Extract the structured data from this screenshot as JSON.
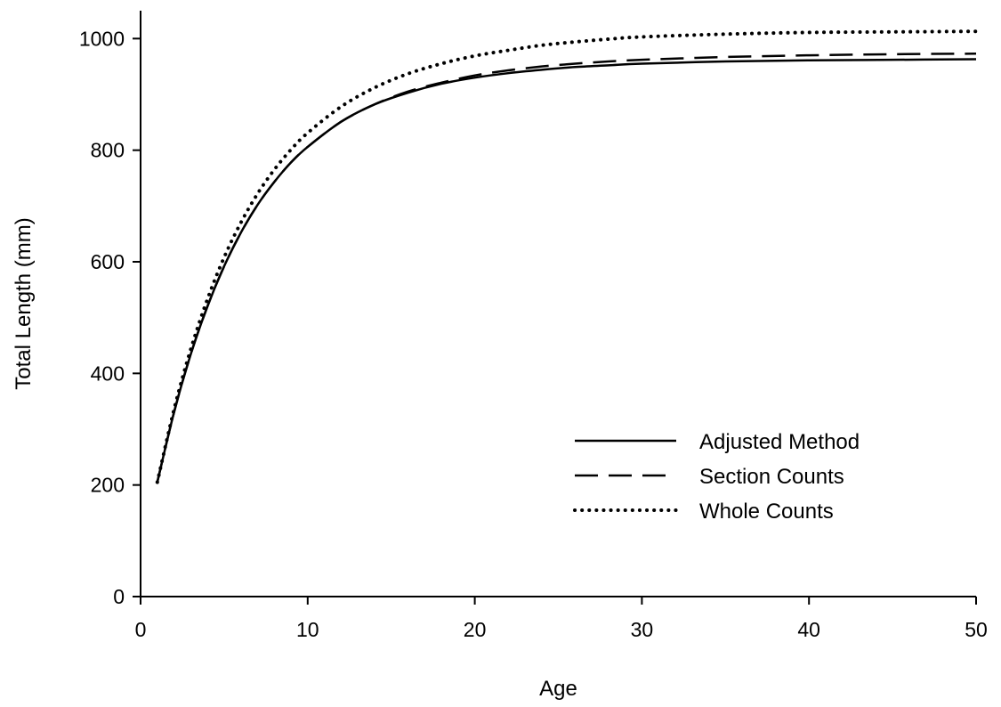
{
  "chart_data": {
    "type": "line",
    "title": "",
    "xlabel": "Age",
    "ylabel": "Total Length (mm)",
    "xlim": [
      0,
      50
    ],
    "ylim": [
      0,
      1050
    ],
    "xticks": [
      0,
      10,
      20,
      30,
      40,
      50
    ],
    "yticks": [
      0,
      200,
      400,
      600,
      800,
      1000
    ],
    "grid": false,
    "legend_position": "lower-right",
    "series": [
      {
        "name": "Adjusted Method",
        "style": "solid",
        "color": "#000000",
        "x": [
          1,
          2,
          3,
          4,
          5,
          6,
          7,
          8,
          9,
          10,
          12,
          14,
          16,
          18,
          20,
          22,
          24,
          26,
          28,
          30,
          35,
          40,
          45,
          50
        ],
        "values": [
          205,
          330,
          434,
          520,
          592,
          652,
          702,
          743,
          778,
          806,
          851,
          882,
          903,
          919,
          930,
          938,
          944,
          949,
          952,
          955,
          959,
          961,
          962,
          963
        ]
      },
      {
        "name": "Section Counts",
        "style": "dashed",
        "color": "#000000",
        "x": [
          1,
          2,
          3,
          4,
          5,
          6,
          7,
          8,
          9,
          10,
          12,
          14,
          16,
          18,
          20,
          22,
          24,
          26,
          28,
          30,
          35,
          40,
          45,
          50
        ],
        "values": [
          205,
          330,
          434,
          520,
          592,
          652,
          702,
          743,
          778,
          806,
          851,
          882,
          905,
          921,
          934,
          943,
          950,
          955,
          959,
          962,
          967,
          970,
          972,
          973
        ]
      },
      {
        "name": "Whole Counts",
        "style": "dotted",
        "color": "#000000",
        "x": [
          1,
          2,
          3,
          4,
          5,
          6,
          7,
          8,
          9,
          10,
          12,
          14,
          16,
          18,
          20,
          22,
          24,
          26,
          28,
          30,
          35,
          40,
          45,
          50
        ],
        "values": [
          205,
          335,
          443,
          533,
          608,
          670,
          722,
          765,
          801,
          831,
          878,
          912,
          937,
          955,
          969,
          979,
          988,
          994,
          999,
          1003,
          1008,
          1011,
          1012,
          1013
        ]
      }
    ]
  }
}
